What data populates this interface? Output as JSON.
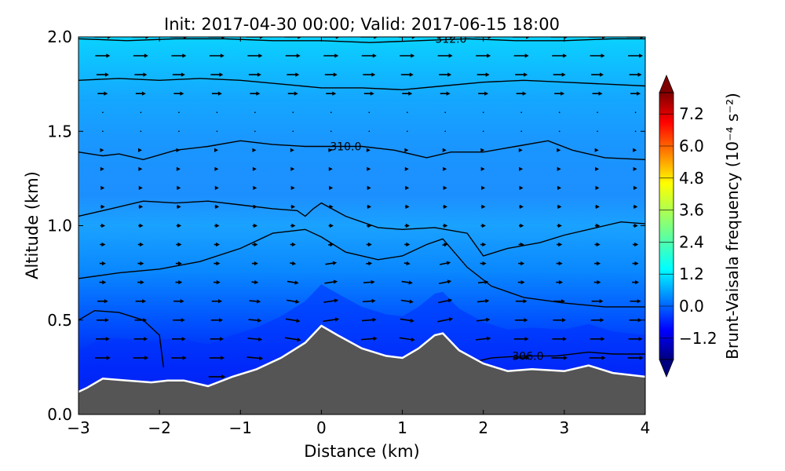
{
  "chart_data": {
    "type": "heatmap",
    "title": "Init: 2017-04-30 00:00; Valid: 2017-06-15 18:00",
    "xlabel": "Distance (km)",
    "ylabel": "Altitude (km)",
    "xlim": [
      -3,
      4
    ],
    "ylim": [
      0.0,
      2.0
    ],
    "x_ticks": [
      -3,
      -2,
      -1,
      0,
      1,
      2,
      3,
      4
    ],
    "x_tick_labels": [
      "−3",
      "−2",
      "−1",
      "0",
      "1",
      "2",
      "3",
      "4"
    ],
    "y_ticks": [
      0.0,
      0.5,
      1.0,
      1.5,
      2.0
    ],
    "y_tick_labels": [
      "0.0",
      "0.5",
      "1.0",
      "1.5",
      "2.0"
    ],
    "colorbar": {
      "label": "Brunt-Vaisala frequency (10⁻⁴ s⁻²)",
      "range": [
        -2.0,
        8.0
      ],
      "extend": "both",
      "ticks": [
        -1.2,
        0.0,
        1.2,
        2.4,
        3.6,
        4.8,
        6.0,
        7.2
      ],
      "tick_labels": [
        "−1.2",
        "0.0",
        "1.2",
        "2.4",
        "3.6",
        "4.8",
        "6.0",
        "7.2"
      ],
      "colormap": "jet"
    },
    "terrain": {
      "x": [
        -3.0,
        -2.9,
        -2.7,
        -2.4,
        -2.1,
        -1.9,
        -1.7,
        -1.4,
        -1.1,
        -0.8,
        -0.5,
        -0.2,
        0.0,
        0.2,
        0.5,
        0.8,
        1.0,
        1.2,
        1.4,
        1.5,
        1.7,
        2.0,
        2.3,
        2.6,
        3.0,
        3.3,
        3.6,
        4.0
      ],
      "y": [
        0.12,
        0.14,
        0.19,
        0.18,
        0.17,
        0.18,
        0.18,
        0.15,
        0.2,
        0.24,
        0.3,
        0.38,
        0.47,
        0.42,
        0.35,
        0.31,
        0.3,
        0.35,
        0.42,
        0.43,
        0.34,
        0.27,
        0.23,
        0.24,
        0.23,
        0.26,
        0.22,
        0.2
      ],
      "color": "#555555"
    },
    "contours": [
      {
        "value": "306.0",
        "label_x": 2.55,
        "label_y": 0.31,
        "x": [
          -3.0,
          -2.8,
          -2.5,
          -2.2,
          -2.0,
          -1.95
        ],
        "y": [
          0.5,
          0.55,
          0.54,
          0.5,
          0.42,
          0.25
        ]
      },
      {
        "value": "",
        "x": [
          1.8,
          2.1,
          2.5,
          2.9,
          3.3,
          3.6,
          4.0
        ],
        "y": [
          0.27,
          0.3,
          0.31,
          0.31,
          0.33,
          0.32,
          0.32
        ]
      },
      {
        "value": "",
        "x": [
          -3.0,
          -2.5,
          -2.0,
          -1.5,
          -1.0,
          -0.6,
          -0.2,
          0.0,
          0.3,
          0.7,
          1.0,
          1.3,
          1.5,
          1.8,
          2.1,
          2.5,
          3.0,
          3.5,
          4.0
        ],
        "y": [
          0.72,
          0.75,
          0.77,
          0.81,
          0.88,
          0.96,
          0.98,
          0.94,
          0.86,
          0.82,
          0.84,
          0.9,
          0.93,
          0.78,
          0.68,
          0.62,
          0.59,
          0.57,
          0.57
        ]
      },
      {
        "value": "",
        "x": [
          -3.0,
          -2.6,
          -2.2,
          -1.8,
          -1.4,
          -1.0,
          -0.6,
          -0.3,
          -0.2,
          -0.1,
          0.0,
          0.3,
          0.7,
          1.0,
          1.4,
          1.8,
          2.0,
          2.3,
          2.7,
          3.0,
          3.4,
          3.7,
          4.0
        ],
        "y": [
          1.05,
          1.09,
          1.13,
          1.12,
          1.13,
          1.11,
          1.09,
          1.08,
          1.05,
          1.09,
          1.12,
          1.05,
          0.99,
          0.98,
          0.99,
          0.96,
          0.84,
          0.88,
          0.91,
          0.95,
          0.99,
          1.02,
          1.01
        ]
      },
      {
        "value": "310.0",
        "label_x": 0.3,
        "label_y": 1.42,
        "x": [
          -3.0,
          -2.7,
          -2.5,
          -2.2,
          -1.8,
          -1.4,
          -1.0,
          -0.6,
          -0.2,
          0.1,
          0.5,
          0.9,
          1.3,
          1.6,
          2.0,
          2.4,
          2.8,
          3.1,
          3.5,
          4.0
        ],
        "y": [
          1.39,
          1.37,
          1.38,
          1.35,
          1.4,
          1.42,
          1.45,
          1.43,
          1.42,
          1.42,
          1.42,
          1.4,
          1.36,
          1.39,
          1.39,
          1.42,
          1.45,
          1.4,
          1.36,
          1.35
        ]
      },
      {
        "value": "",
        "x": [
          -3.0,
          -2.5,
          -2.0,
          -1.5,
          -1.0,
          -0.5,
          0.0,
          0.5,
          1.0,
          1.5,
          2.0,
          2.5,
          3.0,
          3.5,
          4.0
        ],
        "y": [
          1.77,
          1.78,
          1.77,
          1.78,
          1.77,
          1.75,
          1.73,
          1.73,
          1.72,
          1.74,
          1.76,
          1.77,
          1.76,
          1.75,
          1.74
        ]
      },
      {
        "value": "312.0",
        "label_x": 1.6,
        "label_y": 1.99,
        "x": [
          -3.0,
          -2.4,
          -1.8,
          -1.2,
          -0.6,
          0.0,
          0.6,
          1.2,
          1.8,
          2.4,
          3.0,
          3.6,
          4.0
        ],
        "y": [
          1.99,
          1.98,
          1.99,
          1.99,
          1.98,
          1.98,
          1.97,
          1.98,
          1.99,
          1.98,
          1.98,
          1.99,
          1.99
        ]
      }
    ],
    "wind_vectors_description": "arrows shown on a regular grid; strong eastward flow near the surface and in the upper layer, weaker flow aloft in the middle"
  }
}
